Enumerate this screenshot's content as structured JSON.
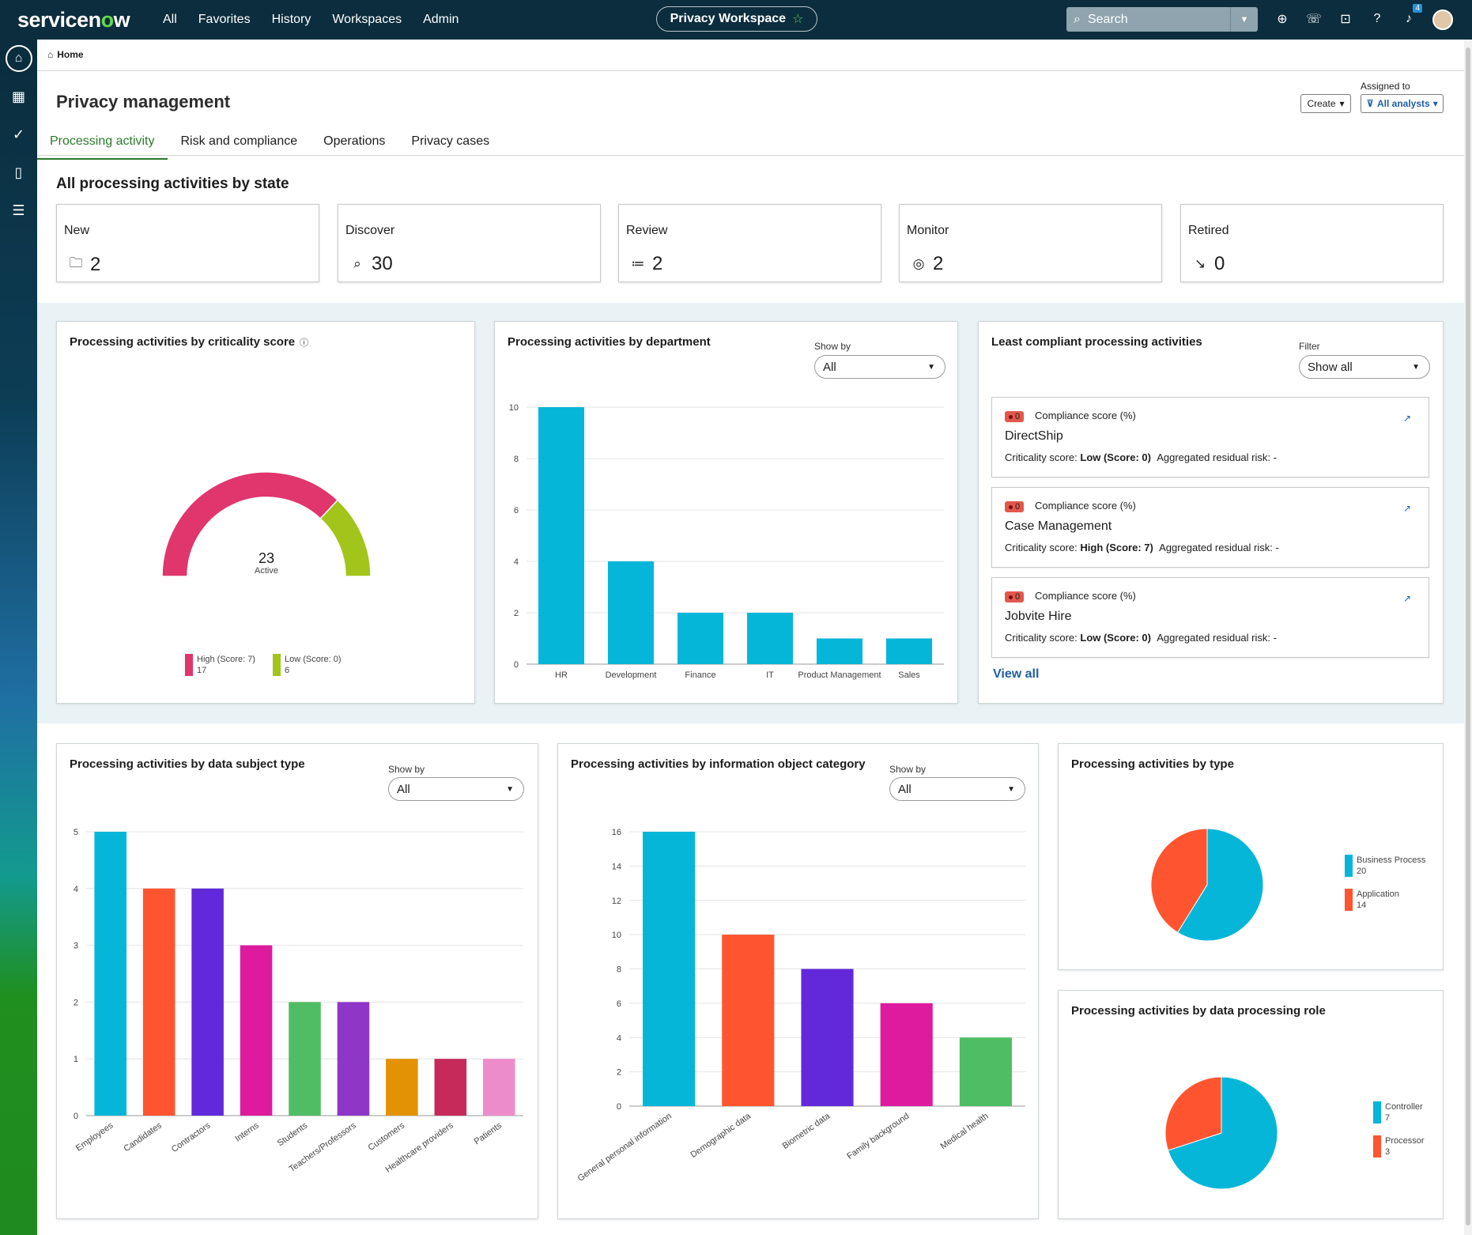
{
  "topbar": {
    "logo_text": "servicenow",
    "nav": [
      "All",
      "Favorites",
      "History",
      "Workspaces",
      "Admin"
    ],
    "workspace": "Privacy Workspace",
    "search_placeholder": "Search",
    "notification_count": "4",
    "icons": [
      "globe-icon",
      "chat-icon",
      "inbox-icon",
      "help-icon",
      "bell-icon"
    ]
  },
  "rail": {
    "icons": [
      "home-icon",
      "apps-grid-icon",
      "check-circle-icon",
      "clipboard-icon",
      "list-icon"
    ]
  },
  "breadcrumb": {
    "label": "Home"
  },
  "header": {
    "title": "Privacy management",
    "create_label": "Create",
    "assigned_label": "Assigned to",
    "assigned_value": "All analysts"
  },
  "tabs": [
    {
      "label": "Processing activity",
      "active": true
    },
    {
      "label": "Risk and compliance",
      "active": false
    },
    {
      "label": "Operations",
      "active": false
    },
    {
      "label": "Privacy cases",
      "active": false
    }
  ],
  "states_title": "All processing activities by state",
  "states": [
    {
      "label": "New",
      "count": "2",
      "icon": "folder-icon"
    },
    {
      "label": "Discover",
      "count": "30",
      "icon": "search-document-icon"
    },
    {
      "label": "Review",
      "count": "2",
      "icon": "review-list-icon"
    },
    {
      "label": "Monitor",
      "count": "2",
      "icon": "monitor-pulse-icon"
    },
    {
      "label": "Retired",
      "count": "0",
      "icon": "arrow-down-right-icon"
    }
  ],
  "criticality": {
    "title": "Processing activities by criticality score",
    "center_value": "23",
    "center_label": "Active"
  },
  "department": {
    "title": "Processing activities by department",
    "showby_label": "Show by",
    "showby_value": "All"
  },
  "compliance": {
    "title": "Least compliant processing activities",
    "filter_label": "Filter",
    "filter_value": "Show all",
    "score_label": "Compliance score (%)",
    "criticality_prefix": "Criticality score:",
    "residual_label": "Aggregated residual risk: -",
    "items": [
      {
        "score": "0",
        "name": "DirectShip",
        "criticality": "Low (Score: 0)"
      },
      {
        "score": "0",
        "name": "Case Management",
        "criticality": "High (Score: 7)"
      },
      {
        "score": "0",
        "name": "Jobvite Hire",
        "criticality": "Low (Score: 0)"
      }
    ],
    "view_all": "View all"
  },
  "subject": {
    "title": "Processing activities by data subject type",
    "showby_label": "Show by",
    "showby_value": "All"
  },
  "infocat": {
    "title": "Processing activities by information object category",
    "showby_label": "Show by",
    "showby_value": "All"
  },
  "ptype": {
    "title": "Processing activities by type"
  },
  "prole": {
    "title": "Processing activities by data processing role"
  },
  "chart_data": [
    {
      "type": "pie",
      "id": "criticality",
      "title": "Processing activities by criticality score",
      "series": [
        {
          "name": "High (Score: 7)",
          "value": 17,
          "color": "#e0356d"
        },
        {
          "name": "Low (Score: 0)",
          "value": 6,
          "color": "#a3c41a"
        }
      ],
      "legend": "bottom"
    },
    {
      "type": "bar",
      "id": "department",
      "title": "Processing activities by department",
      "categories": [
        "HR",
        "Development",
        "Finance",
        "IT",
        "Product Management",
        "Sales"
      ],
      "values": [
        10,
        4,
        2,
        2,
        1,
        1
      ],
      "colors": [
        "#06b6d8"
      ],
      "yticks": [
        0,
        2,
        4,
        6,
        8,
        10
      ],
      "ylim": [
        0,
        10
      ],
      "grid": true
    },
    {
      "type": "bar",
      "id": "subject",
      "title": "Processing activities by data subject type",
      "categories": [
        "Employees",
        "Candidates",
        "Contractors",
        "Interns",
        "Students",
        "Teachers/Professors",
        "Customers",
        "Healthcare providers",
        "Patients"
      ],
      "values": [
        5,
        4,
        4,
        3,
        2,
        2,
        1,
        1,
        1
      ],
      "colors": [
        "#06b6d8",
        "#fe5530",
        "#6129d9",
        "#de1b9f",
        "#4fbd64",
        "#8e36c8",
        "#e39204",
        "#c52a5a",
        "#ec8ccb"
      ],
      "yticks": [
        0,
        1,
        2,
        3,
        4,
        5
      ],
      "ylim": [
        0,
        5
      ],
      "grid": true
    },
    {
      "type": "bar",
      "id": "infocat",
      "title": "Processing activities by information object category",
      "categories": [
        "General personal information",
        "Demographic data",
        "Biometric data",
        "Family background",
        "Medical health"
      ],
      "values": [
        16,
        10,
        8,
        6,
        4
      ],
      "colors": [
        "#06b6d8",
        "#fe5530",
        "#6129d9",
        "#de1b9f",
        "#4fbd64"
      ],
      "yticks": [
        0,
        2,
        4,
        6,
        8,
        10,
        12,
        14,
        16
      ],
      "ylim": [
        0,
        16
      ],
      "grid": true
    },
    {
      "type": "pie",
      "id": "ptype",
      "title": "Processing activities by type",
      "series": [
        {
          "name": "Business Process",
          "value": 20,
          "color": "#06b6d8"
        },
        {
          "name": "Application",
          "value": 14,
          "color": "#fe5530"
        }
      ],
      "legend": "right"
    },
    {
      "type": "pie",
      "id": "prole",
      "title": "Processing activities by data processing role",
      "series": [
        {
          "name": "Controller",
          "value": 7,
          "color": "#06b6d8"
        },
        {
          "name": "Processor",
          "value": 3,
          "color": "#fe5530"
        }
      ],
      "legend": "right"
    }
  ]
}
